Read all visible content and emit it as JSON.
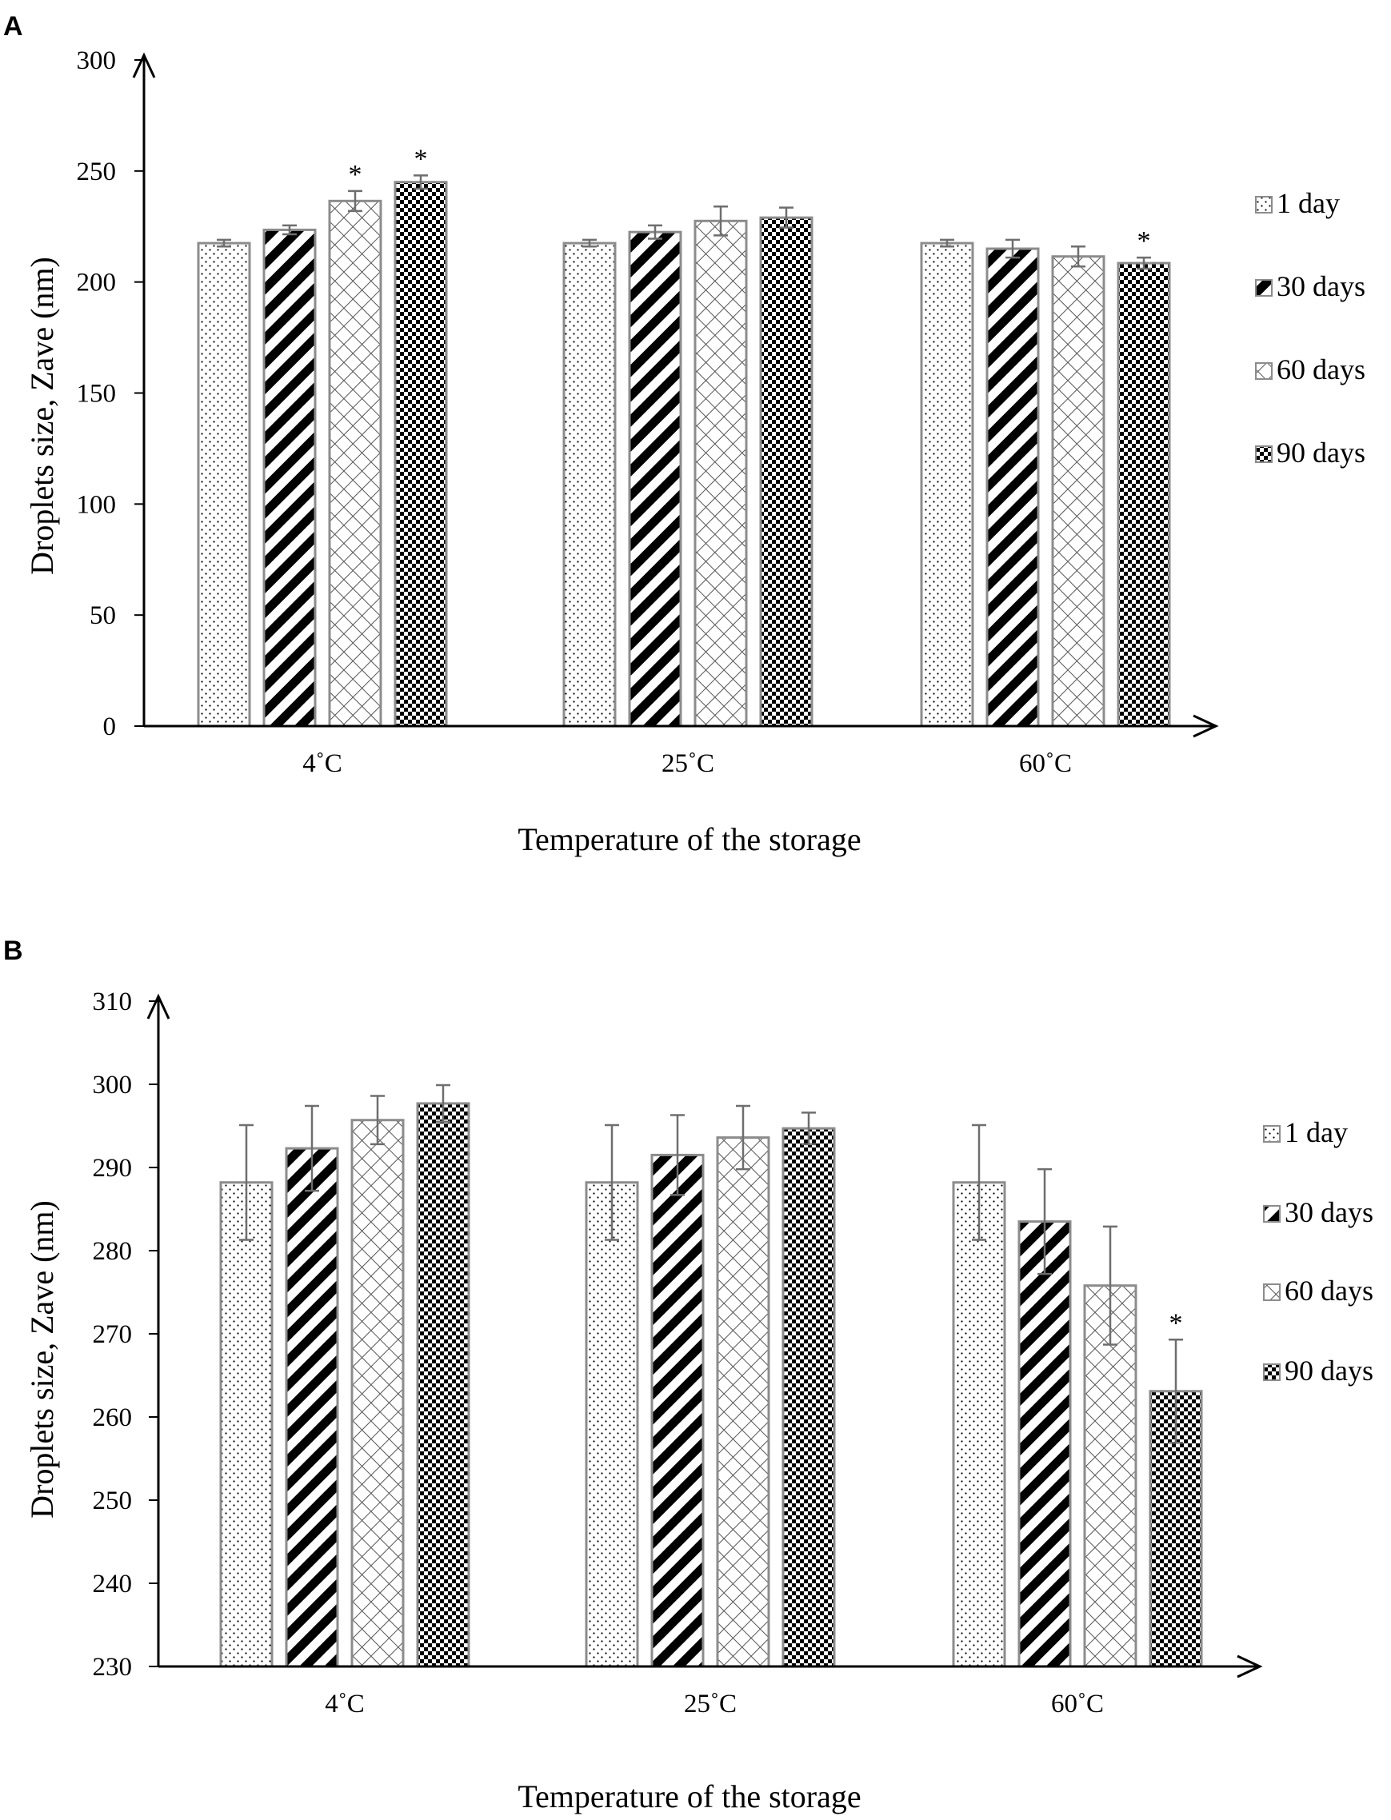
{
  "chart_data": [
    {
      "panel": "A",
      "type": "bar",
      "xlabel": "Temperature of the storage",
      "ylabel": "Droplets size, Zave (nm)",
      "ylim": [
        0,
        300
      ],
      "yticks": [
        0,
        50,
        100,
        150,
        200,
        250,
        300
      ],
      "categories": [
        "4˚C",
        "25˚C",
        "60˚C"
      ],
      "series": [
        {
          "name": "1 day",
          "values": [
            217.5,
            217.5,
            217.5
          ],
          "errors": [
            1.5,
            1.5,
            1.5
          ],
          "significant": [
            false,
            false,
            false
          ]
        },
        {
          "name": "30 days",
          "values": [
            223.5,
            222.5,
            215
          ],
          "errors": [
            2,
            3,
            4
          ],
          "significant": [
            false,
            false,
            false
          ]
        },
        {
          "name": "60 days",
          "values": [
            236.5,
            227.5,
            211.5
          ],
          "errors": [
            4.5,
            6.5,
            4.5
          ],
          "significant": [
            true,
            false,
            false
          ]
        },
        {
          "name": "90 days",
          "values": [
            245,
            229,
            208.5
          ],
          "errors": [
            3,
            4.5,
            2.5
          ],
          "significant": [
            true,
            false,
            true
          ]
        }
      ],
      "significance_marker": "*"
    },
    {
      "panel": "B",
      "type": "bar",
      "xlabel": "Temperature of the storage",
      "ylabel": "Droplets size, Zave (nm)",
      "ylim": [
        230,
        310
      ],
      "yticks": [
        230,
        240,
        250,
        260,
        270,
        280,
        290,
        300,
        310
      ],
      "categories": [
        "4˚C",
        "25˚C",
        "60˚C"
      ],
      "series": [
        {
          "name": "1 day",
          "values": [
            288.2,
            288.2,
            288.2
          ],
          "errors": [
            6.9,
            6.9,
            6.9
          ],
          "significant": [
            false,
            false,
            false
          ]
        },
        {
          "name": "30 days",
          "values": [
            292.3,
            291.5,
            283.5
          ],
          "errors": [
            5.1,
            4.8,
            6.3
          ],
          "significant": [
            false,
            false,
            false
          ]
        },
        {
          "name": "60 days",
          "values": [
            295.7,
            293.6,
            275.8
          ],
          "errors": [
            2.9,
            3.8,
            7.1
          ],
          "significant": [
            false,
            false,
            false
          ]
        },
        {
          "name": "90 days",
          "values": [
            297.7,
            294.7,
            263.1
          ],
          "errors": [
            2.2,
            1.9,
            6.2
          ],
          "significant": [
            false,
            false,
            true
          ]
        }
      ],
      "significance_marker": "*"
    }
  ]
}
